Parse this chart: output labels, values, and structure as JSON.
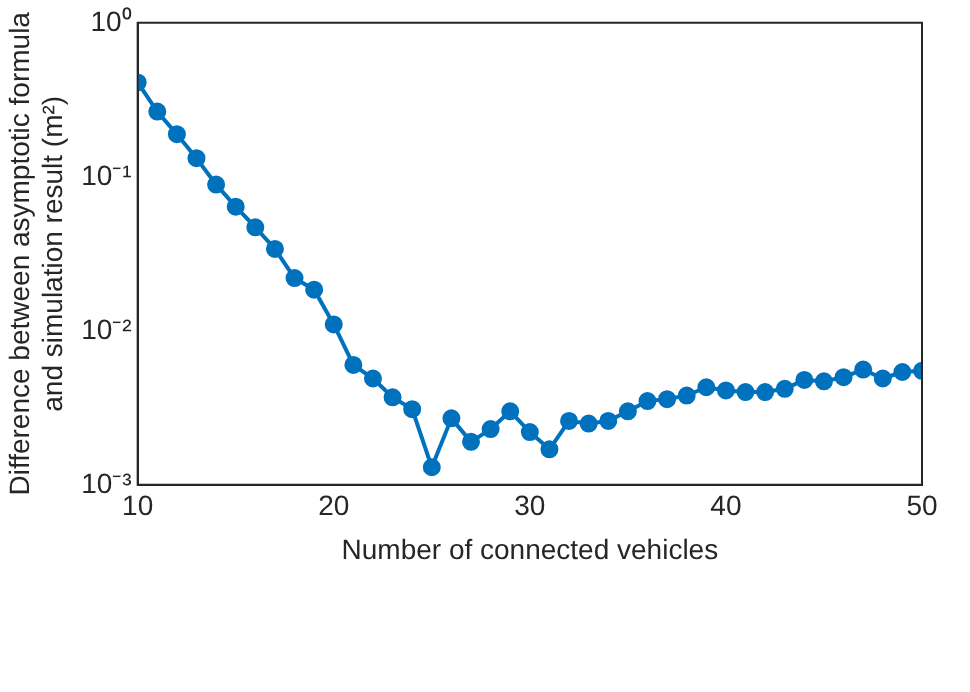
{
  "chart_data": {
    "type": "line",
    "xlabel": "Number of connected vehicles",
    "ylabel": "Difference between asymptotic formula and simulation result (m²)",
    "x": [
      10,
      11,
      12,
      13,
      14,
      15,
      16,
      17,
      18,
      19,
      20,
      21,
      22,
      23,
      24,
      25,
      26,
      27,
      28,
      29,
      30,
      31,
      32,
      33,
      34,
      35,
      36,
      37,
      38,
      39,
      40,
      41,
      42,
      43,
      44,
      45,
      46,
      47,
      48,
      49,
      50
    ],
    "series": [
      {
        "color": "#0072bd",
        "values": [
          0.41,
          0.265,
          0.189,
          0.132,
          0.089,
          0.064,
          0.047,
          0.034,
          0.022,
          0.0185,
          0.011,
          0.006,
          0.0049,
          0.0037,
          0.0031,
          0.0013,
          0.0027,
          0.0019,
          0.0023,
          0.003,
          0.0022,
          0.0017,
          0.0026,
          0.0025,
          0.0026,
          0.003,
          0.0035,
          0.0036,
          0.0038,
          0.0043,
          0.0041,
          0.004,
          0.004,
          0.0042,
          0.0048,
          0.0047,
          0.005,
          0.0056,
          0.0049,
          0.0054,
          0.0055
        ]
      }
    ],
    "xlim": [
      10,
      50
    ],
    "xticks": [
      10,
      20,
      30,
      40,
      50
    ],
    "ylim": [
      0.001,
      1
    ],
    "yticks": [
      {
        "value": 0.001,
        "label": "10⁻³"
      },
      {
        "value": 0.01,
        "label": "10⁻²"
      },
      {
        "value": 0.1,
        "label": "10⁻¹"
      },
      {
        "value": 1,
        "label": "10⁰"
      }
    ],
    "log": "y",
    "grid": false,
    "legend": false,
    "marker": "circle",
    "line_style": "solid"
  }
}
